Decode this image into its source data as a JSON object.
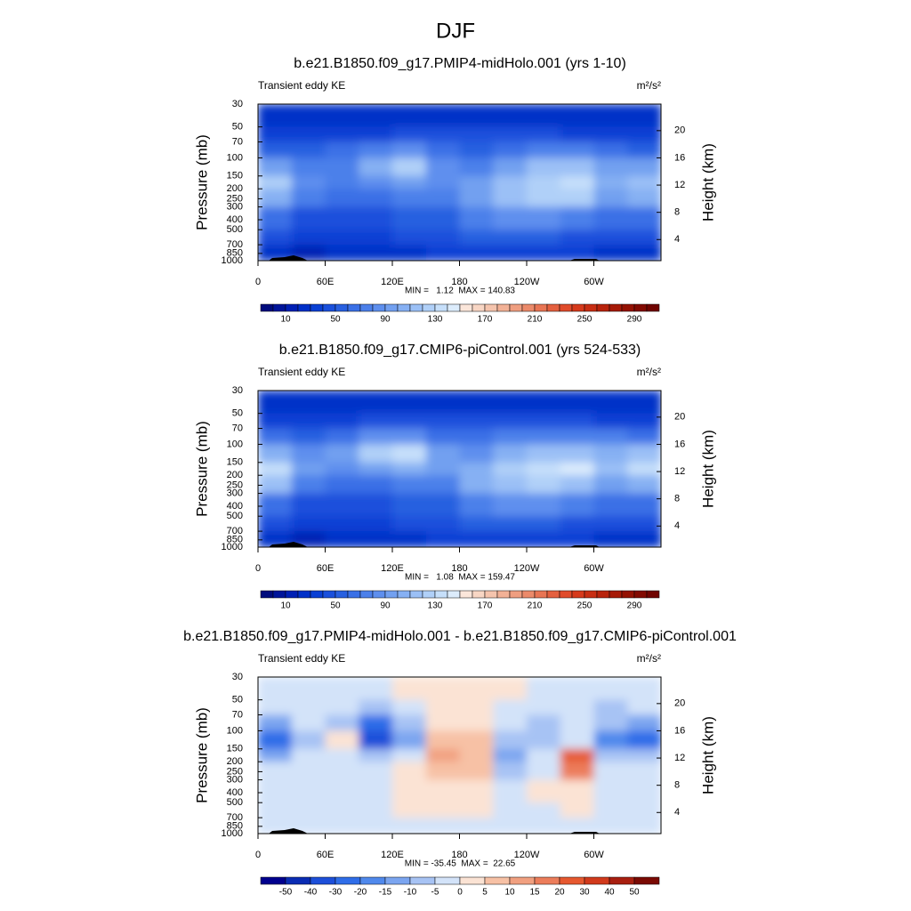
{
  "figure_title": "DJF",
  "chart_data": [
    {
      "type": "contour",
      "title": "b.e21.B1850.f09_g17.PMIP4-midHolo.001 (yrs 1-10)",
      "left_label": "Transient eddy KE",
      "units": "m²/s²",
      "ylabel": "Pressure (mb)",
      "y2label": "Height (km)",
      "annotation": "MIN =   1.12  MAX = 140.83",
      "xlim": [
        0,
        360
      ],
      "xticks": [
        0,
        {
          "value": 60,
          "label": "60E"
        },
        {
          "value": 120,
          "label": "120E"
        },
        180,
        {
          "value": 240,
          "label": "120W"
        },
        {
          "value": 300,
          "label": "60W"
        }
      ],
      "ylim": [
        1000,
        30
      ],
      "ylog": true,
      "yticks": [
        30,
        50,
        70,
        100,
        150,
        200,
        250,
        300,
        400,
        500,
        700,
        850,
        1000
      ],
      "y2lim": [
        0.9,
        23.9
      ],
      "y2ticks": [
        4,
        8,
        12,
        16,
        20
      ],
      "x_edges": [
        0,
        30,
        60,
        90,
        120,
        150,
        180,
        210,
        240,
        270,
        300,
        330,
        360
      ],
      "p_edges": [
        30,
        50,
        70,
        100,
        150,
        200,
        300,
        500,
        700,
        1000
      ],
      "values": [
        [
          20,
          20,
          20,
          20,
          20,
          20,
          20,
          20,
          20,
          20,
          20,
          20
        ],
        [
          30,
          30,
          30,
          30,
          40,
          40,
          40,
          40,
          40,
          30,
          30,
          30
        ],
        [
          50,
          50,
          60,
          70,
          80,
          60,
          50,
          60,
          70,
          70,
          60,
          50
        ],
        [
          90,
          70,
          70,
          100,
          120,
          80,
          70,
          90,
          110,
          110,
          90,
          90
        ],
        [
          120,
          80,
          70,
          80,
          90,
          80,
          90,
          110,
          120,
          130,
          100,
          110
        ],
        [
          100,
          70,
          60,
          60,
          70,
          70,
          90,
          110,
          120,
          120,
          90,
          100
        ],
        [
          60,
          40,
          40,
          40,
          50,
          50,
          70,
          80,
          80,
          70,
          60,
          60
        ],
        [
          40,
          30,
          30,
          30,
          40,
          40,
          50,
          50,
          50,
          40,
          40,
          40
        ],
        [
          20,
          10,
          20,
          20,
          20,
          30,
          30,
          30,
          30,
          30,
          20,
          20
        ]
      ],
      "levels": [
        0,
        10,
        20,
        30,
        40,
        50,
        60,
        70,
        80,
        90,
        100,
        110,
        120,
        130,
        140,
        150,
        160,
        170,
        180,
        190,
        200,
        210,
        220,
        230,
        240,
        250,
        260,
        270,
        280,
        290,
        300
      ],
      "colors": [
        "#000c7d",
        "#00159a",
        "#0020b4",
        "#0030c8",
        "#0a40d4",
        "#1a50dc",
        "#2860e0",
        "#3a70e6",
        "#4c80ea",
        "#5e8fee",
        "#72a0f0",
        "#86b0f3",
        "#9bc0f6",
        "#b0d0f8",
        "#c6dffa",
        "#dcecfc",
        "#fbe6da",
        "#f8d6c4",
        "#f5c4ad",
        "#f2b196",
        "#ef9e80",
        "#eb8a6a",
        "#e87554",
        "#e4603f",
        "#e04b2b",
        "#d63a1c",
        "#c82e13",
        "#b8230c",
        "#a61a07",
        "#941203",
        "#820a01",
        "#700400"
      ],
      "colorbar_ticks": [
        10,
        50,
        90,
        130,
        170,
        210,
        250,
        290
      ]
    },
    {
      "type": "contour",
      "title": "b.e21.B1850.f09_g17.CMIP6-piControl.001 (yrs 524-533)",
      "left_label": "Transient eddy KE",
      "units": "m²/s²",
      "ylabel": "Pressure (mb)",
      "y2label": "Height (km)",
      "annotation": "MIN =   1.08  MAX = 159.47",
      "xlim": [
        0,
        360
      ],
      "xticks": [
        0,
        {
          "value": 60,
          "label": "60E"
        },
        {
          "value": 120,
          "label": "120E"
        },
        180,
        {
          "value": 240,
          "label": "120W"
        },
        {
          "value": 300,
          "label": "60W"
        }
      ],
      "ylim": [
        1000,
        30
      ],
      "ylog": true,
      "yticks": [
        30,
        50,
        70,
        100,
        150,
        200,
        250,
        300,
        400,
        500,
        700,
        850,
        1000
      ],
      "y2lim": [
        0.9,
        23.9
      ],
      "y2ticks": [
        4,
        8,
        12,
        16,
        20
      ],
      "x_edges": [
        0,
        30,
        60,
        90,
        120,
        150,
        180,
        210,
        240,
        270,
        300,
        330,
        360
      ],
      "p_edges": [
        30,
        50,
        70,
        100,
        150,
        200,
        300,
        500,
        700,
        1000
      ],
      "values": [
        [
          20,
          20,
          20,
          20,
          20,
          20,
          20,
          20,
          20,
          20,
          20,
          20
        ],
        [
          30,
          30,
          30,
          40,
          40,
          40,
          40,
          40,
          40,
          40,
          30,
          30
        ],
        [
          60,
          50,
          60,
          80,
          80,
          60,
          60,
          70,
          70,
          70,
          70,
          60
        ],
        [
          100,
          80,
          90,
          120,
          130,
          90,
          80,
          100,
          110,
          110,
          100,
          110
        ],
        [
          130,
          90,
          80,
          90,
          100,
          90,
          100,
          120,
          130,
          140,
          110,
          130
        ],
        [
          110,
          70,
          60,
          60,
          70,
          70,
          100,
          110,
          120,
          110,
          90,
          100
        ],
        [
          60,
          40,
          40,
          40,
          50,
          50,
          70,
          80,
          80,
          70,
          60,
          60
        ],
        [
          40,
          30,
          30,
          30,
          40,
          40,
          50,
          50,
          50,
          40,
          40,
          40
        ],
        [
          20,
          10,
          20,
          20,
          20,
          30,
          30,
          30,
          30,
          30,
          20,
          20
        ]
      ],
      "levels": [
        0,
        10,
        20,
        30,
        40,
        50,
        60,
        70,
        80,
        90,
        100,
        110,
        120,
        130,
        140,
        150,
        160,
        170,
        180,
        190,
        200,
        210,
        220,
        230,
        240,
        250,
        260,
        270,
        280,
        290,
        300
      ],
      "colors": [
        "#000c7d",
        "#00159a",
        "#0020b4",
        "#0030c8",
        "#0a40d4",
        "#1a50dc",
        "#2860e0",
        "#3a70e6",
        "#4c80ea",
        "#5e8fee",
        "#72a0f0",
        "#86b0f3",
        "#9bc0f6",
        "#b0d0f8",
        "#c6dffa",
        "#dcecfc",
        "#fbe6da",
        "#f8d6c4",
        "#f5c4ad",
        "#f2b196",
        "#ef9e80",
        "#eb8a6a",
        "#e87554",
        "#e4603f",
        "#e04b2b",
        "#d63a1c",
        "#c82e13",
        "#b8230c",
        "#a61a07",
        "#941203",
        "#820a01",
        "#700400"
      ],
      "colorbar_ticks": [
        10,
        50,
        90,
        130,
        170,
        210,
        250,
        290
      ]
    },
    {
      "type": "contour",
      "title": "b.e21.B1850.f09_g17.PMIP4-midHolo.001 - b.e21.B1850.f09_g17.CMIP6-piControl.001",
      "left_label": "Transient eddy KE",
      "units": "m²/s²",
      "ylabel": "Pressure (mb)",
      "y2label": "Height (km)",
      "annotation": "MIN = -35.45  MAX =  22.65",
      "xlim": [
        0,
        360
      ],
      "xticks": [
        0,
        {
          "value": 60,
          "label": "60E"
        },
        {
          "value": 120,
          "label": "120E"
        },
        180,
        {
          "value": 240,
          "label": "120W"
        },
        {
          "value": 300,
          "label": "60W"
        }
      ],
      "ylim": [
        1000,
        30
      ],
      "ylog": true,
      "yticks": [
        30,
        50,
        70,
        100,
        150,
        200,
        250,
        300,
        400,
        500,
        700,
        850,
        1000
      ],
      "y2lim": [
        0.9,
        23.9
      ],
      "y2ticks": [
        4,
        8,
        12,
        16,
        20
      ],
      "x_edges": [
        0,
        30,
        60,
        90,
        120,
        150,
        180,
        210,
        240,
        270,
        300,
        330,
        360
      ],
      "p_edges": [
        30,
        50,
        70,
        100,
        150,
        200,
        300,
        500,
        700,
        1000
      ],
      "values": [
        [
          -3,
          -3,
          -3,
          -3,
          2,
          2,
          2,
          2,
          -3,
          -3,
          -3,
          -3
        ],
        [
          -3,
          -3,
          -3,
          -8,
          -3,
          2,
          2,
          -3,
          -3,
          -3,
          -8,
          -3
        ],
        [
          -12,
          -3,
          -8,
          -25,
          -8,
          3,
          3,
          -3,
          -8,
          -3,
          -8,
          -12
        ],
        [
          -30,
          -8,
          2,
          -35,
          -12,
          8,
          7,
          -8,
          -8,
          -3,
          -20,
          -25
        ],
        [
          -12,
          -3,
          -3,
          -8,
          -3,
          10,
          8,
          -12,
          -3,
          20,
          -8,
          -8
        ],
        [
          -3,
          -3,
          -3,
          -3,
          2,
          8,
          7,
          -8,
          -3,
          15,
          -3,
          -3
        ],
        [
          -3,
          -3,
          -3,
          -3,
          2,
          4,
          3,
          -3,
          2,
          3,
          -3,
          -3
        ],
        [
          -3,
          -3,
          -3,
          -3,
          2,
          2,
          2,
          -3,
          -3,
          2,
          -3,
          -3
        ],
        [
          -3,
          -3,
          -3,
          -3,
          -3,
          -3,
          -3,
          -3,
          -3,
          -3,
          -3,
          -3
        ]
      ],
      "levels": [
        -50,
        -40,
        -30,
        -20,
        -15,
        -10,
        -5,
        0,
        5,
        10,
        15,
        20,
        30,
        40,
        50
      ],
      "colors": [
        "#00008e",
        "#0a2cb3",
        "#1d4fd9",
        "#2f6de8",
        "#5089ec",
        "#7ba5f0",
        "#a7c3f4",
        "#d3e3f9",
        "#fbe3d4",
        "#f7c1a5",
        "#f1a080",
        "#ec7d5b",
        "#e6582f",
        "#d13a1c",
        "#a81f10",
        "#7a0a03"
      ],
      "colorbar_ticks": [
        -50,
        -40,
        -30,
        -20,
        -15,
        -10,
        -5,
        0,
        5,
        10,
        15,
        20,
        30,
        40,
        50
      ]
    }
  ]
}
